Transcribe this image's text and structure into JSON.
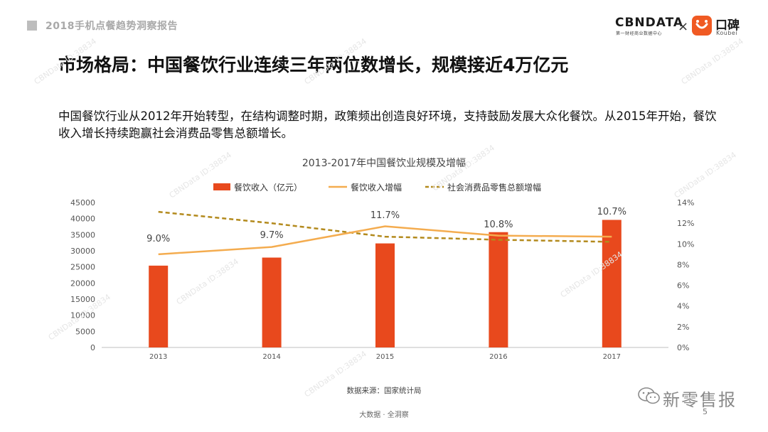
{
  "header": {
    "report_title": "2018手机点餐趋势洞察报告",
    "brand_cbn": "CBNDATA",
    "brand_cbn_sub": "第一财经商业数据中心",
    "brand_separator": "×",
    "brand_koubei_cn": "口碑",
    "brand_koubei_en": "Koubei"
  },
  "headline": "市场格局：中国餐饮行业连续三年两位数增长，规模接近4万亿元",
  "intro": "中国餐饮行业从2012年开始转型，在结构调整时期，政策频出创造良好环境，支持鼓励发展大众化餐饮。从2015年开始，餐饮收入增长持续跑赢社会消费品零售总额增长。",
  "watermark": "CBNData ID:38834",
  "source": "数据来源：国家统计局",
  "footer": "大数据 · 全洞察",
  "page_number": "5",
  "wechat_account": "新零售报",
  "colors": {
    "bar": "#e8491d",
    "line": "#f4ac4f",
    "dashed": "#b38a1d",
    "brand_orange": "#f05a23"
  },
  "chart_data": {
    "type": "bar",
    "title": "2013-2017年中国餐饮业规模及增幅",
    "categories": [
      "2013",
      "2014",
      "2015",
      "2016",
      "2017"
    ],
    "series": [
      {
        "name": "餐饮收入（亿元）",
        "type": "bar",
        "axis": "left",
        "values": [
          25400,
          27900,
          32300,
          35800,
          39600
        ]
      },
      {
        "name": "餐饮收入增幅",
        "type": "line",
        "axis": "right",
        "values": [
          9.0,
          9.7,
          11.7,
          10.8,
          10.7
        ],
        "labels": [
          "9.0%",
          "9.7%",
          "11.7%",
          "10.8%",
          "10.7%"
        ]
      },
      {
        "name": "社会消费品零售总额增幅",
        "type": "line-dashed",
        "axis": "right",
        "values": [
          13.1,
          12.0,
          10.7,
          10.4,
          10.2
        ]
      }
    ],
    "y_left": {
      "min": 0,
      "max": 45000,
      "step": 5000,
      "ticks": [
        "0",
        "5000",
        "10000",
        "15000",
        "20000",
        "25000",
        "30000",
        "35000",
        "40000",
        "45000"
      ]
    },
    "y_right": {
      "min": 0,
      "max": 14,
      "step": 2,
      "ticks": [
        "0%",
        "2%",
        "4%",
        "6%",
        "8%",
        "10%",
        "12%",
        "14%"
      ]
    },
    "legend_position": "top",
    "grid": false
  }
}
